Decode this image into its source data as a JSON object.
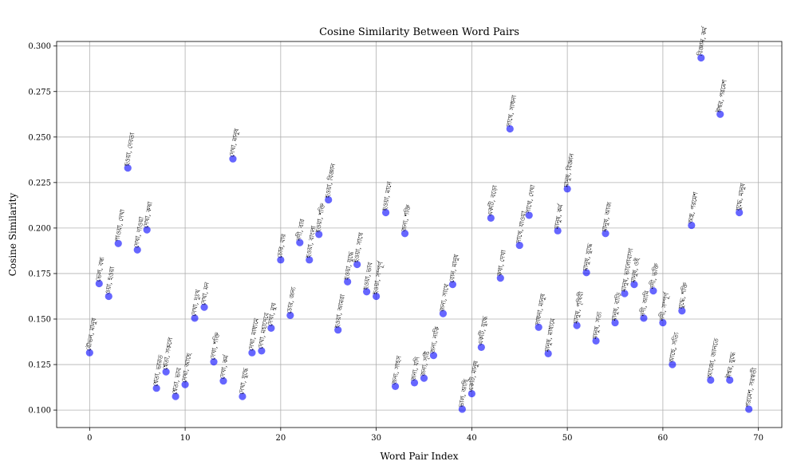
{
  "chart_data": {
    "type": "scatter",
    "title": "Cosine Similarity Between Word Pairs",
    "xlabel": "Word Pair Index",
    "ylabel": "Cosine Similarity",
    "xlim": [
      -3.45,
      72.45
    ],
    "ylim": [
      0.0904,
      0.3025
    ],
    "xticks": [
      0,
      10,
      20,
      30,
      40,
      50,
      60,
      70
    ],
    "yticks": [
      0.1,
      0.125,
      0.15,
      0.175,
      0.2,
      0.225,
      0.25,
      0.275,
      0.3
    ],
    "ytick_labels": [
      "0.100",
      "0.125",
      "0.150",
      "0.175",
      "0.200",
      "0.225",
      "0.250",
      "0.275",
      "0.300"
    ],
    "grid": true,
    "point_color": "#0000ff",
    "point_alpha": 0.6,
    "label_rotation": -80,
    "points": [
      {
        "x": 0,
        "y": 0.1315,
        "label": "বৌভন, মানুষ"
      },
      {
        "x": 1,
        "y": 0.1695,
        "label": "ভেল, বন্ধ"
      },
      {
        "x": 2,
        "y": 0.1625,
        "label": "ওয়া, হওয়া"
      },
      {
        "x": 3,
        "y": 0.1915,
        "label": "পাওয়া, দেখা"
      },
      {
        "x": 4,
        "y": 0.233,
        "label": "হওয়া, দেবতা"
      },
      {
        "x": 5,
        "y": 0.188,
        "label": "দেখা, দাওয়া"
      },
      {
        "x": 6,
        "y": 0.199,
        "label": "দেখা, কথা"
      },
      {
        "x": 7,
        "y": 0.112,
        "label": "শ্বেতা, ভারত"
      },
      {
        "x": 8,
        "y": 0.121,
        "label": "শ্বেতা, সকলে"
      },
      {
        "x": 9,
        "y": 0.1075,
        "label": "শ্বেতা, ভাব"
      },
      {
        "x": 10,
        "y": 0.114,
        "label": "দেখা, আছে"
      },
      {
        "x": 11,
        "y": 0.1505,
        "label": "দেখা, দুঃখ"
      },
      {
        "x": 12,
        "y": 0.1565,
        "label": "দেখা, মন"
      },
      {
        "x": 13,
        "y": 0.1265,
        "label": "দেখা, শক্তি"
      },
      {
        "x": 14,
        "y": 0.116,
        "label": "দেখা, কর্ম"
      },
      {
        "x": 15,
        "y": 0.238,
        "label": "দেখা, মানুষ"
      },
      {
        "x": 16,
        "y": 0.1075,
        "label": "দেখা, যুদ্ধে"
      },
      {
        "x": 17,
        "y": 0.1315,
        "label": "দেখা, মাধ্যমে"
      },
      {
        "x": 18,
        "y": 0.1325,
        "label": "দেখা, মহাদেবে"
      },
      {
        "x": 19,
        "y": 0.145,
        "label": "দেখা, মুখ"
      },
      {
        "x": 20,
        "y": 0.1825,
        "label": "চোর, বার"
      },
      {
        "x": 21,
        "y": 0.152,
        "label": "চোর, জন্য"
      },
      {
        "x": 22,
        "y": 0.192,
        "label": "নদী, বার"
      },
      {
        "x": 23,
        "y": 0.1825,
        "label": "হওয়া, বাংলা"
      },
      {
        "x": 24,
        "y": 0.1965,
        "label": "হওয়া, শক্তি"
      },
      {
        "x": 25,
        "y": 0.2155,
        "label": "হওয়া, বিজ্ঞান"
      },
      {
        "x": 26,
        "y": 0.144,
        "label": "হওয়া, আমরা"
      },
      {
        "x": 27,
        "y": 0.1705,
        "label": "হওয়া, যুদ্ধে"
      },
      {
        "x": 28,
        "y": 0.18,
        "label": "হওয়া, সাথে"
      },
      {
        "x": 29,
        "y": 0.165,
        "label": "হওয়া, ভাব"
      },
      {
        "x": 30,
        "y": 0.1625,
        "label": "হওয়া, সম্পূর্ণ"
      },
      {
        "x": 31,
        "y": 0.2085,
        "label": "হওয়া, মানে"
      },
      {
        "x": 32,
        "y": 0.113,
        "label": "জন্য, সাহস"
      },
      {
        "x": 33,
        "y": 0.197,
        "label": "জন্য, শক্তি"
      },
      {
        "x": 34,
        "y": 0.115,
        "label": "জন্য, যদি"
      },
      {
        "x": 35,
        "y": 0.1175,
        "label": "জন্য, সৃষ্টি"
      },
      {
        "x": 36,
        "y": 0.13,
        "label": "জন্য, নাকি"
      },
      {
        "x": 37,
        "y": 0.153,
        "label": "জন্য, সাথে"
      },
      {
        "x": 38,
        "y": 0.169,
        "label": "বোন, মানুষ"
      },
      {
        "x": 39,
        "y": 0.1005,
        "label": "ভাল, আছি"
      },
      {
        "x": 40,
        "y": 0.109,
        "label": "একটি, মানুষ"
      },
      {
        "x": 41,
        "y": 0.1345,
        "label": "একটি, যুদ্ধে"
      },
      {
        "x": 42,
        "y": 0.2055,
        "label": "একটি, বড়ো"
      },
      {
        "x": 43,
        "y": 0.1725,
        "label": "কথা, দেখা"
      },
      {
        "x": 44,
        "y": 0.2545,
        "label": "সাথে, সাধনা"
      },
      {
        "x": 45,
        "y": 0.1905,
        "label": "সাথে, যাওয়া"
      },
      {
        "x": 46,
        "y": 0.207,
        "label": "সাথে, দেখা"
      },
      {
        "x": 47,
        "y": 0.1455,
        "label": "সাধনা, মানুষ"
      },
      {
        "x": 48,
        "y": 0.131,
        "label": "মানুষ, মাধ্যমে"
      },
      {
        "x": 49,
        "y": 0.1985,
        "label": "মানুষ, কর্ম"
      },
      {
        "x": 50,
        "y": 0.2215,
        "label": "মানুষ, বিজ্ঞান"
      },
      {
        "x": 51,
        "y": 0.1465,
        "label": "মানুষ, পৃথিবী"
      },
      {
        "x": 52,
        "y": 0.1755,
        "label": "মানুষ, যুদ্ধে"
      },
      {
        "x": 53,
        "y": 0.138,
        "label": "মানুষ, সত্য"
      },
      {
        "x": 54,
        "y": 0.197,
        "label": "মানুষ, আজ"
      },
      {
        "x": 55,
        "y": 0.148,
        "label": "মানুষ, বাড়ি"
      },
      {
        "x": 56,
        "y": 0.164,
        "label": "মানুষ, ভালোবাসা"
      },
      {
        "x": 57,
        "y": 0.169,
        "label": "মানুষ, ওই"
      },
      {
        "x": 58,
        "y": 0.1505,
        "label": "নদী, আমি"
      },
      {
        "x": 59,
        "y": 0.1655,
        "label": "নদী, ভক্তি"
      },
      {
        "x": 60,
        "y": 0.148,
        "label": "নদী, সম্পূর্ণ"
      },
      {
        "x": 61,
        "y": 0.125,
        "label": "আছে, সত্যি"
      },
      {
        "x": 62,
        "y": 0.1545,
        "label": "যুদ্ধে, শক্তি"
      },
      {
        "x": 63,
        "y": 0.2015,
        "label": "অস্ত্র, পরমেশ"
      },
      {
        "x": 64,
        "y": 0.2935,
        "label": "বিজ্ঞান, কর্ম"
      },
      {
        "x": 65,
        "y": 0.1165,
        "label": "আজো, জানতে"
      },
      {
        "x": 66,
        "y": 0.2625,
        "label": "ঈশ্বর, পরমেশ"
      },
      {
        "x": 67,
        "y": 0.1165,
        "label": "ঈশ্বর, যুদ্ধে"
      },
      {
        "x": 68,
        "y": 0.2085,
        "label": "যুদ্ধে, মানুষ"
      },
      {
        "x": 69,
        "y": 0.1005,
        "label": "পরমেশ, সরস্বতী"
      }
    ]
  }
}
